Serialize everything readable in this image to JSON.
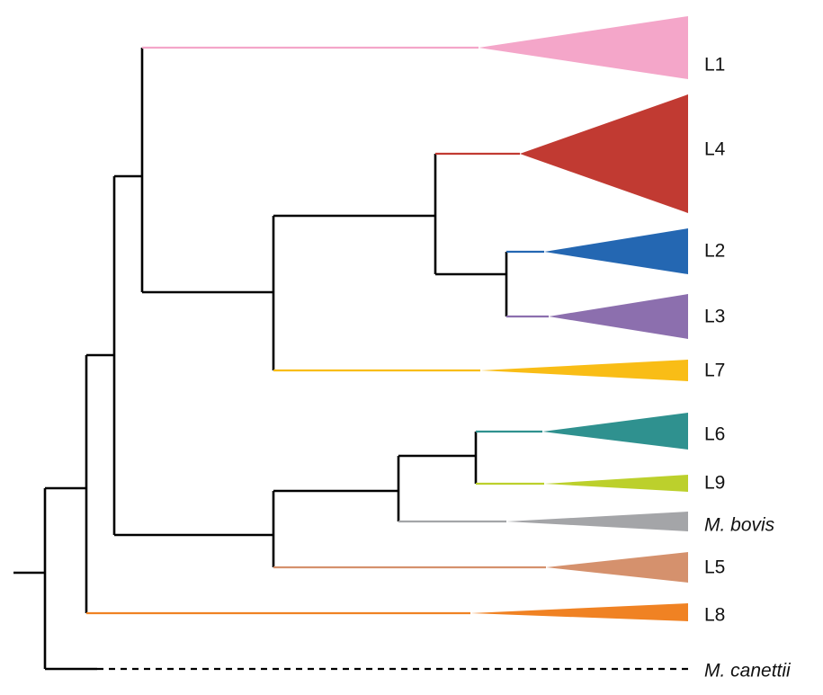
{
  "tips": [
    {
      "id": "L1",
      "label": "L1",
      "italic": false,
      "color": "#f4a6c9"
    },
    {
      "id": "L4",
      "label": "L4",
      "italic": false,
      "color": "#c13a32"
    },
    {
      "id": "L2",
      "label": "L2",
      "italic": false,
      "color": "#2467b2"
    },
    {
      "id": "L3",
      "label": "L3",
      "italic": false,
      "color": "#8c6fae"
    },
    {
      "id": "L7",
      "label": "L7",
      "italic": false,
      "color": "#f9bd16"
    },
    {
      "id": "L6",
      "label": "L6",
      "italic": false,
      "color": "#2f918f"
    },
    {
      "id": "L9",
      "label": "L9",
      "italic": false,
      "color": "#bcd02c"
    },
    {
      "id": "Mbovis",
      "label": "M. bovis",
      "italic": true,
      "color": "#a4a5a8"
    },
    {
      "id": "L5",
      "label": "L5",
      "italic": false,
      "color": "#d5916d"
    },
    {
      "id": "L8",
      "label": "L8",
      "italic": false,
      "color": "#f08223"
    },
    {
      "id": "Mcanettii",
      "label": "M. canettii",
      "italic": true,
      "color": "#000000",
      "dashed": true
    }
  ]
}
